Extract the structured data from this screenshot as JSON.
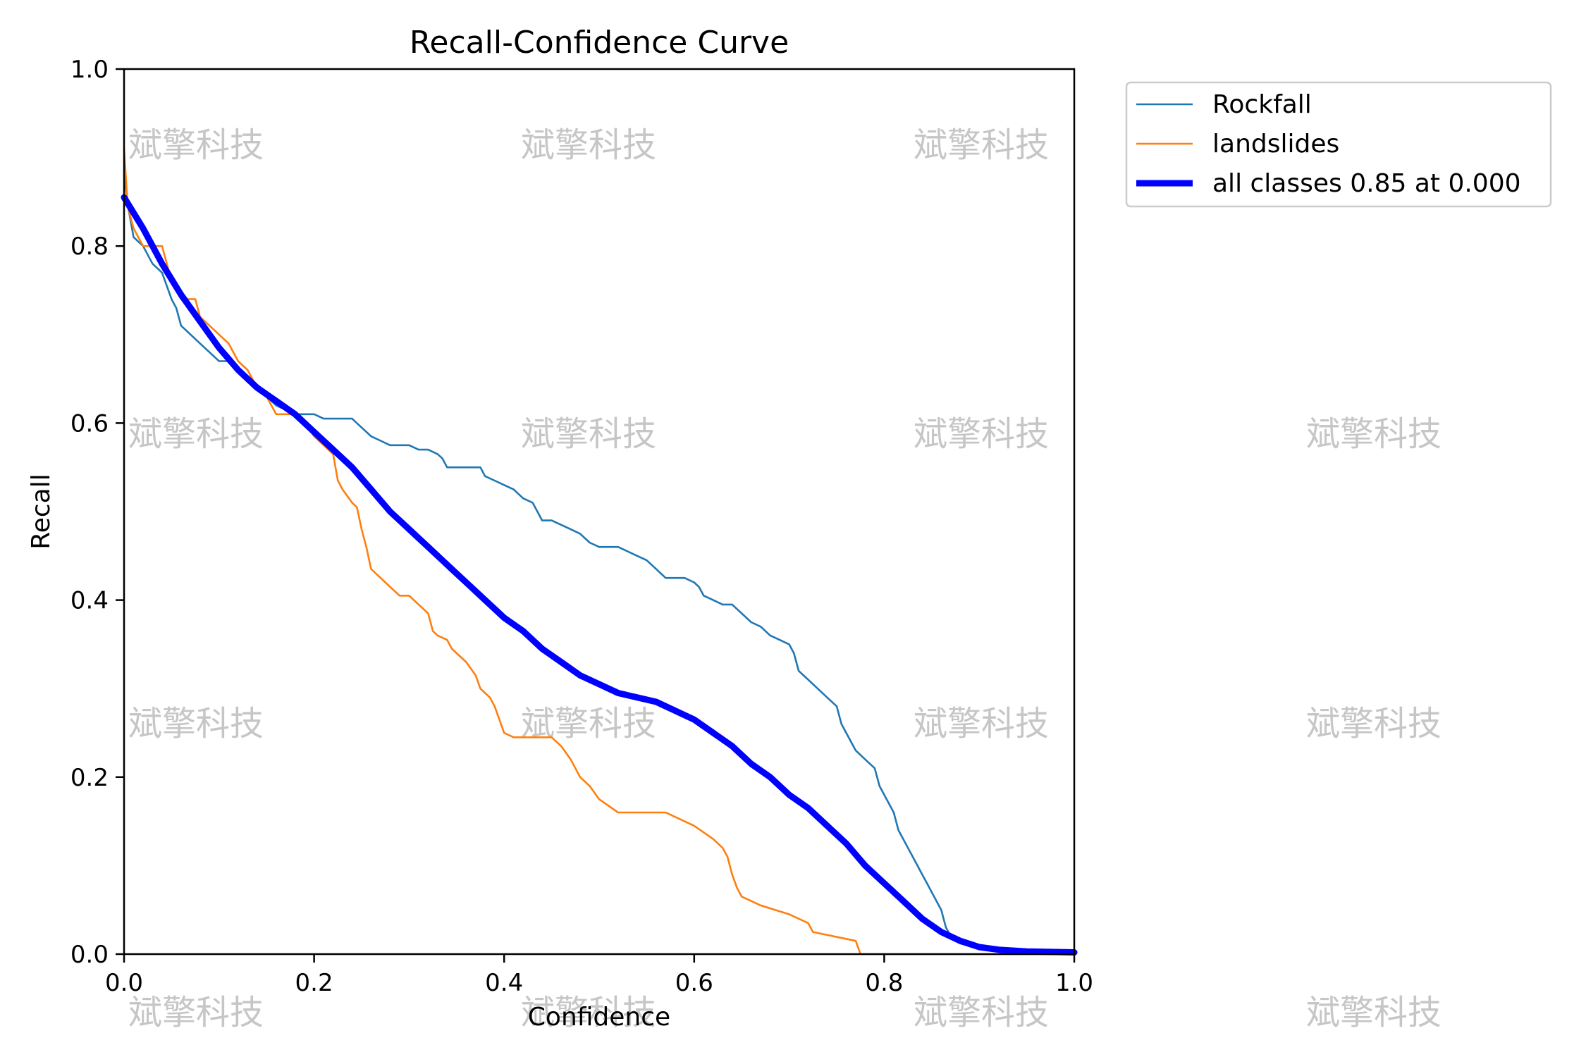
{
  "chart_data": {
    "type": "line",
    "title": "Recall-Confidence Curve",
    "xlabel": "Confidence",
    "ylabel": "Recall",
    "xlim": [
      0,
      1
    ],
    "ylim": [
      0,
      1
    ],
    "xticks": [
      "0.0",
      "0.2",
      "0.4",
      "0.6",
      "0.8",
      "1.0"
    ],
    "yticks": [
      "0.0",
      "0.2",
      "0.4",
      "0.6",
      "0.8",
      "1.0"
    ],
    "grid": false,
    "legend_position": "outside-top-right",
    "series": [
      {
        "name": "Rockfall",
        "color": "#1f77b4",
        "style": "thin",
        "x": [
          0.0,
          0.005,
          0.01,
          0.02,
          0.03,
          0.04,
          0.05,
          0.055,
          0.06,
          0.07,
          0.08,
          0.09,
          0.1,
          0.11,
          0.12,
          0.13,
          0.14,
          0.15,
          0.16,
          0.17,
          0.18,
          0.19,
          0.2,
          0.21,
          0.22,
          0.23,
          0.24,
          0.25,
          0.26,
          0.27,
          0.28,
          0.29,
          0.3,
          0.31,
          0.32,
          0.33,
          0.335,
          0.34,
          0.35,
          0.36,
          0.37,
          0.375,
          0.38,
          0.39,
          0.4,
          0.41,
          0.42,
          0.43,
          0.435,
          0.44,
          0.45,
          0.46,
          0.47,
          0.48,
          0.49,
          0.5,
          0.51,
          0.52,
          0.53,
          0.54,
          0.55,
          0.56,
          0.57,
          0.58,
          0.59,
          0.6,
          0.605,
          0.61,
          0.62,
          0.63,
          0.64,
          0.65,
          0.66,
          0.67,
          0.68,
          0.69,
          0.7,
          0.705,
          0.71,
          0.72,
          0.73,
          0.74,
          0.75,
          0.755,
          0.76,
          0.77,
          0.78,
          0.79,
          0.795,
          0.8,
          0.81,
          0.815,
          0.82,
          0.825,
          0.83,
          0.835,
          0.84,
          0.845,
          0.85,
          0.855,
          0.86,
          0.865,
          0.87,
          0.88,
          0.9,
          0.92,
          0.94
        ],
        "y": [
          0.88,
          0.84,
          0.81,
          0.8,
          0.78,
          0.77,
          0.74,
          0.73,
          0.71,
          0.7,
          0.69,
          0.68,
          0.67,
          0.67,
          0.66,
          0.65,
          0.64,
          0.63,
          0.62,
          0.615,
          0.61,
          0.61,
          0.61,
          0.605,
          0.605,
          0.605,
          0.605,
          0.595,
          0.585,
          0.58,
          0.575,
          0.575,
          0.575,
          0.57,
          0.57,
          0.565,
          0.56,
          0.55,
          0.55,
          0.55,
          0.55,
          0.55,
          0.54,
          0.535,
          0.53,
          0.525,
          0.515,
          0.51,
          0.5,
          0.49,
          0.49,
          0.485,
          0.48,
          0.475,
          0.465,
          0.46,
          0.46,
          0.46,
          0.455,
          0.45,
          0.445,
          0.435,
          0.425,
          0.425,
          0.425,
          0.42,
          0.415,
          0.405,
          0.4,
          0.395,
          0.395,
          0.385,
          0.375,
          0.37,
          0.36,
          0.355,
          0.35,
          0.34,
          0.32,
          0.31,
          0.3,
          0.29,
          0.28,
          0.26,
          0.25,
          0.23,
          0.22,
          0.21,
          0.19,
          0.18,
          0.16,
          0.14,
          0.13,
          0.12,
          0.11,
          0.1,
          0.09,
          0.08,
          0.07,
          0.06,
          0.05,
          0.03,
          0.02,
          0.012,
          0.008,
          0.006,
          0.005
        ]
      },
      {
        "name": "landslides",
        "color": "#ff7f0e",
        "style": "thin",
        "x": [
          0.0,
          0.003,
          0.005,
          0.01,
          0.02,
          0.03,
          0.04,
          0.045,
          0.05,
          0.06,
          0.07,
          0.075,
          0.08,
          0.09,
          0.1,
          0.11,
          0.12,
          0.13,
          0.14,
          0.15,
          0.16,
          0.17,
          0.18,
          0.19,
          0.2,
          0.21,
          0.22,
          0.225,
          0.23,
          0.24,
          0.245,
          0.25,
          0.255,
          0.26,
          0.27,
          0.28,
          0.29,
          0.3,
          0.31,
          0.32,
          0.325,
          0.33,
          0.34,
          0.345,
          0.35,
          0.36,
          0.37,
          0.375,
          0.38,
          0.385,
          0.39,
          0.395,
          0.4,
          0.41,
          0.43,
          0.45,
          0.46,
          0.47,
          0.48,
          0.49,
          0.5,
          0.52,
          0.55,
          0.57,
          0.6,
          0.62,
          0.63,
          0.635,
          0.64,
          0.645,
          0.65,
          0.66,
          0.67,
          0.7,
          0.72,
          0.725,
          0.77,
          0.775,
          0.8,
          0.9,
          1.0
        ],
        "y": [
          0.91,
          0.86,
          0.84,
          0.82,
          0.8,
          0.8,
          0.8,
          0.78,
          0.76,
          0.74,
          0.74,
          0.74,
          0.72,
          0.71,
          0.7,
          0.69,
          0.67,
          0.66,
          0.64,
          0.63,
          0.61,
          0.61,
          0.61,
          0.6,
          0.585,
          0.575,
          0.565,
          0.535,
          0.525,
          0.51,
          0.505,
          0.48,
          0.46,
          0.435,
          0.425,
          0.415,
          0.405,
          0.405,
          0.395,
          0.385,
          0.365,
          0.36,
          0.355,
          0.345,
          0.34,
          0.33,
          0.315,
          0.3,
          0.295,
          0.29,
          0.28,
          0.265,
          0.25,
          0.245,
          0.245,
          0.245,
          0.235,
          0.22,
          0.2,
          0.19,
          0.175,
          0.16,
          0.16,
          0.16,
          0.145,
          0.13,
          0.12,
          0.11,
          0.09,
          0.075,
          0.065,
          0.06,
          0.055,
          0.045,
          0.035,
          0.025,
          0.015,
          0.0,
          0.0,
          0.0,
          0.0
        ]
      },
      {
        "name": "all classes 0.85 at 0.000",
        "color": "#0000ff",
        "style": "thick",
        "x": [
          0.0,
          0.02,
          0.04,
          0.06,
          0.08,
          0.1,
          0.12,
          0.14,
          0.16,
          0.18,
          0.2,
          0.22,
          0.24,
          0.26,
          0.28,
          0.3,
          0.32,
          0.34,
          0.36,
          0.38,
          0.4,
          0.42,
          0.44,
          0.46,
          0.48,
          0.5,
          0.52,
          0.54,
          0.56,
          0.58,
          0.6,
          0.62,
          0.64,
          0.66,
          0.68,
          0.7,
          0.72,
          0.74,
          0.76,
          0.78,
          0.8,
          0.82,
          0.84,
          0.86,
          0.88,
          0.9,
          0.92,
          0.95,
          1.0
        ],
        "y": [
          0.855,
          0.82,
          0.78,
          0.745,
          0.715,
          0.685,
          0.66,
          0.64,
          0.625,
          0.61,
          0.59,
          0.57,
          0.55,
          0.525,
          0.5,
          0.48,
          0.46,
          0.44,
          0.42,
          0.4,
          0.38,
          0.365,
          0.345,
          0.33,
          0.315,
          0.305,
          0.295,
          0.29,
          0.285,
          0.275,
          0.265,
          0.25,
          0.235,
          0.215,
          0.2,
          0.18,
          0.165,
          0.145,
          0.125,
          0.1,
          0.08,
          0.06,
          0.04,
          0.025,
          0.015,
          0.008,
          0.005,
          0.003,
          0.002
        ]
      }
    ]
  },
  "watermark": {
    "text": "斌擎科技"
  }
}
